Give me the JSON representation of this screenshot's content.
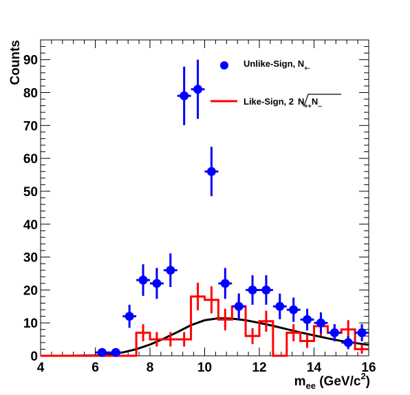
{
  "chart_data": {
    "type": "scatter",
    "xlabel_main": "m",
    "xlabel_sub": "ee",
    "xlabel_unit_open": " (GeV/c",
    "xlabel_unit_sup": "2",
    "xlabel_unit_close": ")",
    "ylabel": "Counts",
    "xlim": [
      4,
      16
    ],
    "ylim": [
      0,
      96
    ],
    "x_ticks": [
      "4",
      "6",
      "8",
      "10",
      "12",
      "14",
      "16"
    ],
    "y_ticks": [
      "0",
      "10",
      "20",
      "30",
      "40",
      "50",
      "60",
      "70",
      "80",
      "90"
    ],
    "legend": {
      "placement": "top-right",
      "unlike_label": "Unlike-Sign, N",
      "unlike_sub": "+-",
      "like_label": "Like-Sign, 2",
      "like_sqrt_main": "N",
      "like_sqrt_sub1": "++",
      "like_sqrt_mid": "N",
      "like_sqrt_sub2": "--"
    },
    "series": [
      {
        "name": "Unlike-Sign, N+-",
        "kind": "points",
        "color": "#0000ff",
        "x": [
          6.25,
          6.75,
          7.25,
          7.75,
          8.25,
          8.75,
          9.25,
          9.75,
          10.25,
          10.75,
          11.25,
          11.75,
          12.25,
          12.75,
          13.25,
          13.75,
          14.25,
          14.75,
          15.25,
          15.75
        ],
        "y": [
          1,
          1,
          12,
          23,
          22,
          26,
          79,
          81,
          56,
          22,
          15,
          20,
          20,
          15,
          14,
          11,
          10,
          7,
          4,
          7
        ],
        "err": [
          1,
          1,
          3.5,
          4.8,
          4.7,
          5.1,
          8.9,
          9,
          7.5,
          4.7,
          3.9,
          4.5,
          4.5,
          3.9,
          3.7,
          3.3,
          3.2,
          2.6,
          2,
          2.6
        ]
      },
      {
        "name": "Like-Sign, 2sqrt(N++N--)",
        "kind": "histogram",
        "color": "#ff0000",
        "x": [
          4.25,
          4.75,
          5.25,
          5.75,
          6.25,
          6.75,
          7.25,
          7.75,
          8.25,
          8.75,
          9.25,
          9.75,
          10.25,
          10.75,
          11.25,
          11.75,
          12.25,
          12.75,
          13.25,
          13.75,
          14.25,
          14.75,
          15.25,
          15.75
        ],
        "y": [
          0,
          0,
          0,
          0,
          0,
          0,
          0,
          7,
          5,
          5,
          5,
          18,
          17,
          11,
          15,
          6,
          10.5,
          0,
          7,
          4.5,
          9,
          7,
          8,
          2
        ],
        "err": [
          0,
          0,
          0,
          0,
          0,
          0,
          0,
          2.6,
          2.2,
          2.2,
          2.2,
          4.2,
          4.1,
          3.3,
          3.9,
          2.4,
          3.2,
          0,
          2.6,
          2.1,
          3,
          2.6,
          2.8,
          1.4
        ]
      },
      {
        "name": "fit",
        "kind": "curve",
        "color": "#000000",
        "x": [
          4,
          5,
          6,
          6.5,
          7,
          7.5,
          8,
          8.5,
          9,
          9.5,
          10,
          10.5,
          11,
          11.5,
          12,
          12.5,
          13,
          13.5,
          14,
          14.5,
          15,
          15.5,
          16
        ],
        "y": [
          0,
          0,
          0.1,
          0.4,
          1,
          2,
          3.4,
          5.2,
          7.2,
          9.3,
          10.8,
          11.4,
          11.3,
          10.8,
          10,
          9.1,
          8.1,
          7.1,
          6.2,
          5.3,
          4.5,
          3.9,
          3.3
        ]
      }
    ]
  }
}
